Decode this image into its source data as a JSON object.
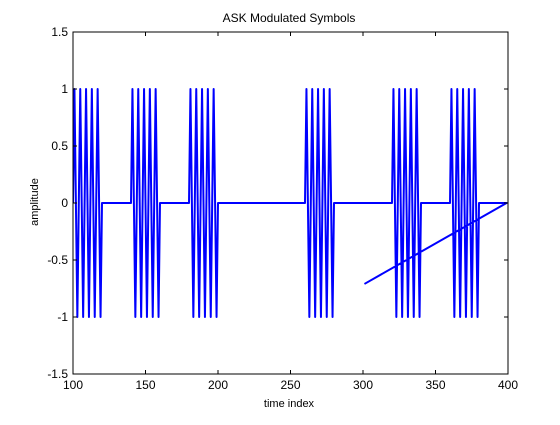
{
  "chart_data": {
    "type": "line",
    "title": "ASK Modulated Symbols",
    "xlabel": "time index",
    "ylabel": "amplitude",
    "xlim": [
      100,
      400
    ],
    "ylim": [
      -1.5,
      1.5
    ],
    "xticks": [
      100,
      150,
      200,
      250,
      300,
      350,
      400
    ],
    "yticks": [
      -1.5,
      -1,
      -0.5,
      0,
      0.5,
      1,
      1.5
    ],
    "xtick_labels": [
      "100",
      "150",
      "200",
      "250",
      "300",
      "350",
      "400"
    ],
    "ytick_labels": [
      "-1.5",
      "-1",
      "-0.5",
      "0",
      "0.5",
      "1",
      "1.5"
    ],
    "grid": false,
    "series": [
      {
        "color": "#0000ff",
        "symbol_length": 20,
        "symbols": [
          1,
          0,
          1,
          0,
          1,
          0,
          0,
          0,
          1,
          0,
          0,
          1,
          0,
          1,
          0
        ],
        "carrier_amplitude": 1,
        "samples_per_cycle": 4,
        "trailing_fall_x": 301,
        "trailing_fall_y": -0.71
      }
    ]
  },
  "colors": {
    "line": "#0000ff",
    "axes": "#000000",
    "background": "#ffffff"
  }
}
